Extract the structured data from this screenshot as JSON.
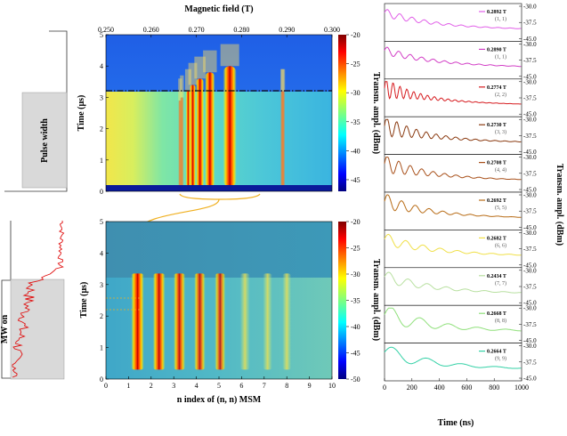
{
  "chart_data": [
    {
      "type": "heatmap",
      "title": "Magnetic field (T)",
      "xlabel": "",
      "ylabel": "Time (μs)",
      "colorbar_label": "Transm. ampl. (dBm)",
      "x_ticks": [
        "0.250",
        "0.260",
        "0.270",
        "0.280",
        "0.290",
        "0.300"
      ],
      "y_ticks": [
        "0",
        "1",
        "2",
        "3",
        "4",
        "5"
      ],
      "colorbar_ticks": [
        "-20",
        "-25",
        "-30",
        "-35",
        "-40",
        "-45"
      ],
      "xlim": [
        0.25,
        0.3
      ],
      "ylim": [
        0,
        5
      ],
      "clim": [
        -47,
        -20
      ],
      "peaks_T": [
        0.2664,
        0.2668,
        0.2682,
        0.2692,
        0.2708,
        0.273,
        0.2774,
        0.289,
        0.2892
      ],
      "dashed_line_time_us": 3.1
    },
    {
      "type": "heatmap",
      "title": "",
      "xlabel": "n index of (n, n) MSM",
      "ylabel": "Time (μs)",
      "colorbar_label": "Transm. ampl. (dBm)",
      "x_ticks": [
        "0",
        "1",
        "2",
        "3",
        "4",
        "5",
        "6",
        "7",
        "8",
        "9",
        "10"
      ],
      "y_ticks": [
        "0",
        "1",
        "2",
        "3",
        "4",
        "5"
      ],
      "colorbar_ticks": [
        "-20",
        "-25",
        "-30",
        "-35",
        "-40",
        "-45",
        "-50"
      ],
      "xlim": [
        0,
        10
      ],
      "ylim": [
        0,
        5
      ],
      "clim": [
        -50,
        -20
      ],
      "stripe_centers_n": [
        1.4,
        2.35,
        3.25,
        4.15,
        5.05,
        6.15,
        7.15,
        8.0
      ]
    },
    {
      "type": "line",
      "title": "",
      "xlabel": "Time (ns)",
      "ylabel": "Transm. ampl. (dBm)",
      "x_ticks": [
        "0",
        "200",
        "400",
        "600",
        "800",
        "1000"
      ],
      "xlim": [
        0,
        1000
      ],
      "y_ticks": [
        "-30.0",
        "-37.5",
        "-45.0"
      ],
      "ylim": [
        -45,
        -30
      ],
      "series": [
        {
          "field": "0.2892 T",
          "index": "(1, 1)",
          "color": "#e15fe8"
        },
        {
          "field": "0.2890 T",
          "index": "(1, 1)",
          "color": "#d23fc6"
        },
        {
          "field": "0.2774 T",
          "index": "(2, 2)",
          "color": "#d61b1f"
        },
        {
          "field": "0.2730 T",
          "index": "(3, 3)",
          "color": "#8a3a10"
        },
        {
          "field": "0.2708 T",
          "index": "(4, 4)",
          "color": "#a8501a"
        },
        {
          "field": "0.2692 T",
          "index": "(5, 5)",
          "color": "#b86c16"
        },
        {
          "field": "0.2682 T",
          "index": "(6, 6)",
          "color": "#f0e048"
        },
        {
          "field": "0.2434 T",
          "index": "(7, 7)",
          "color": "#b8e0a0"
        },
        {
          "field": "0.2668 T",
          "index": "(8, 8)",
          "color": "#8fe07a"
        },
        {
          "field": "0.2664 T",
          "index": "(9, 9)",
          "color": "#33d1a6"
        }
      ]
    }
  ],
  "annotations": {
    "pulse_width": "Pulse width",
    "mw_on": "MW on"
  },
  "colors": {
    "jet_low": "#00007f",
    "jet_mid": "#7fff7f",
    "jet_high": "#7f0000",
    "trace_red": "#e01010",
    "bracket": "#f0b020",
    "dashed": "#111111"
  }
}
